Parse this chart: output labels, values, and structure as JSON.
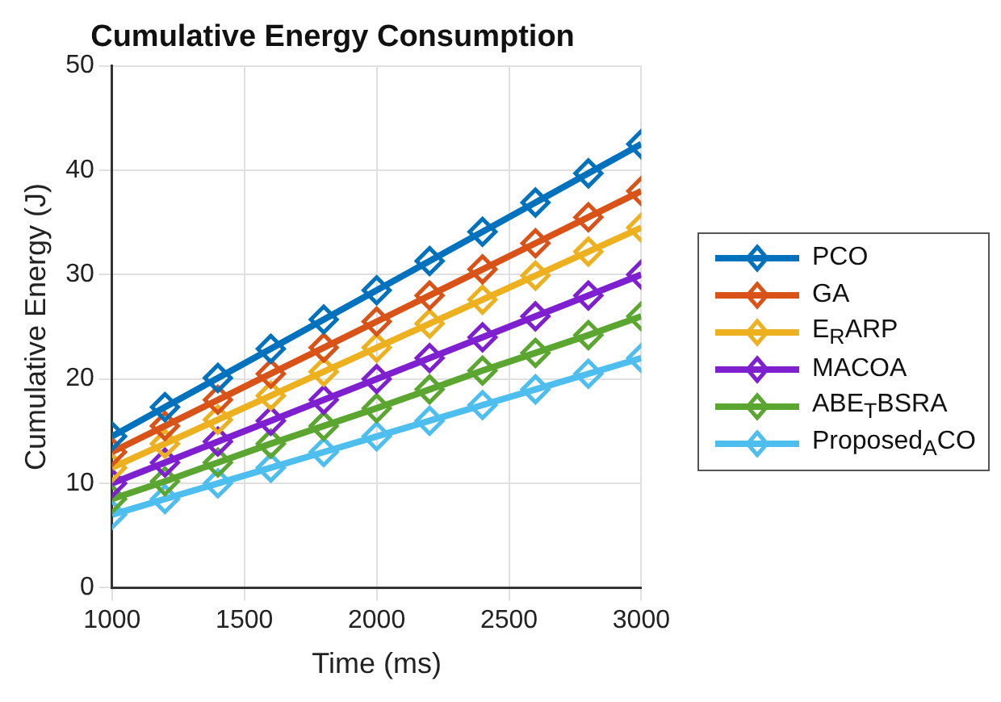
{
  "chart_data": {
    "type": "line",
    "title": "Cumulative Energy Consumption",
    "xlabel": "Time (ms)",
    "ylabel": "Cumulative Energy (J)",
    "x": [
      1000,
      1200,
      1400,
      1600,
      1800,
      2000,
      2200,
      2400,
      2600,
      2800,
      3000
    ],
    "series": [
      {
        "name": "PCO",
        "color": "#0072bd",
        "values": [
          14.5,
          17.3,
          20.1,
          22.9,
          25.7,
          28.5,
          31.3,
          34.1,
          36.9,
          39.7,
          42.5
        ]
      },
      {
        "name": "GA",
        "color": "#d95319",
        "values": [
          13,
          15.5,
          18,
          20.5,
          23,
          25.5,
          28,
          30.5,
          33,
          35.5,
          38
        ]
      },
      {
        "name": "E$_{R}$ARP",
        "color": "#edb120",
        "values": [
          11.5,
          13.8,
          16.1,
          18.4,
          20.7,
          23,
          25.3,
          27.6,
          29.9,
          32.2,
          34.5
        ]
      },
      {
        "name": "MACOA",
        "color": "#7e1fd0",
        "values": [
          10,
          12,
          14,
          16,
          18,
          20,
          22,
          24,
          26,
          28,
          30
        ]
      },
      {
        "name": "ABE$_{T}$BSRA",
        "color": "#5aa630",
        "values": [
          8.5,
          10.2,
          12,
          13.8,
          15.5,
          17.2,
          19,
          20.8,
          22.5,
          24.2,
          26
        ]
      },
      {
        "name": "Proposed$_{A}$CO",
        "color": "#4dbeee",
        "values": [
          7,
          8.5,
          10,
          11.5,
          13,
          14.5,
          16,
          17.5,
          19,
          20.5,
          22
        ]
      }
    ],
    "xlim": [
      1000,
      3000
    ],
    "xticks": [
      1000,
      1500,
      2000,
      2500,
      3000
    ],
    "ylim": [
      0,
      50
    ],
    "yticks": [
      0,
      10,
      20,
      30,
      40,
      50
    ],
    "grid": true,
    "legend": "right",
    "marker": "diamond",
    "line_style": "solid"
  }
}
